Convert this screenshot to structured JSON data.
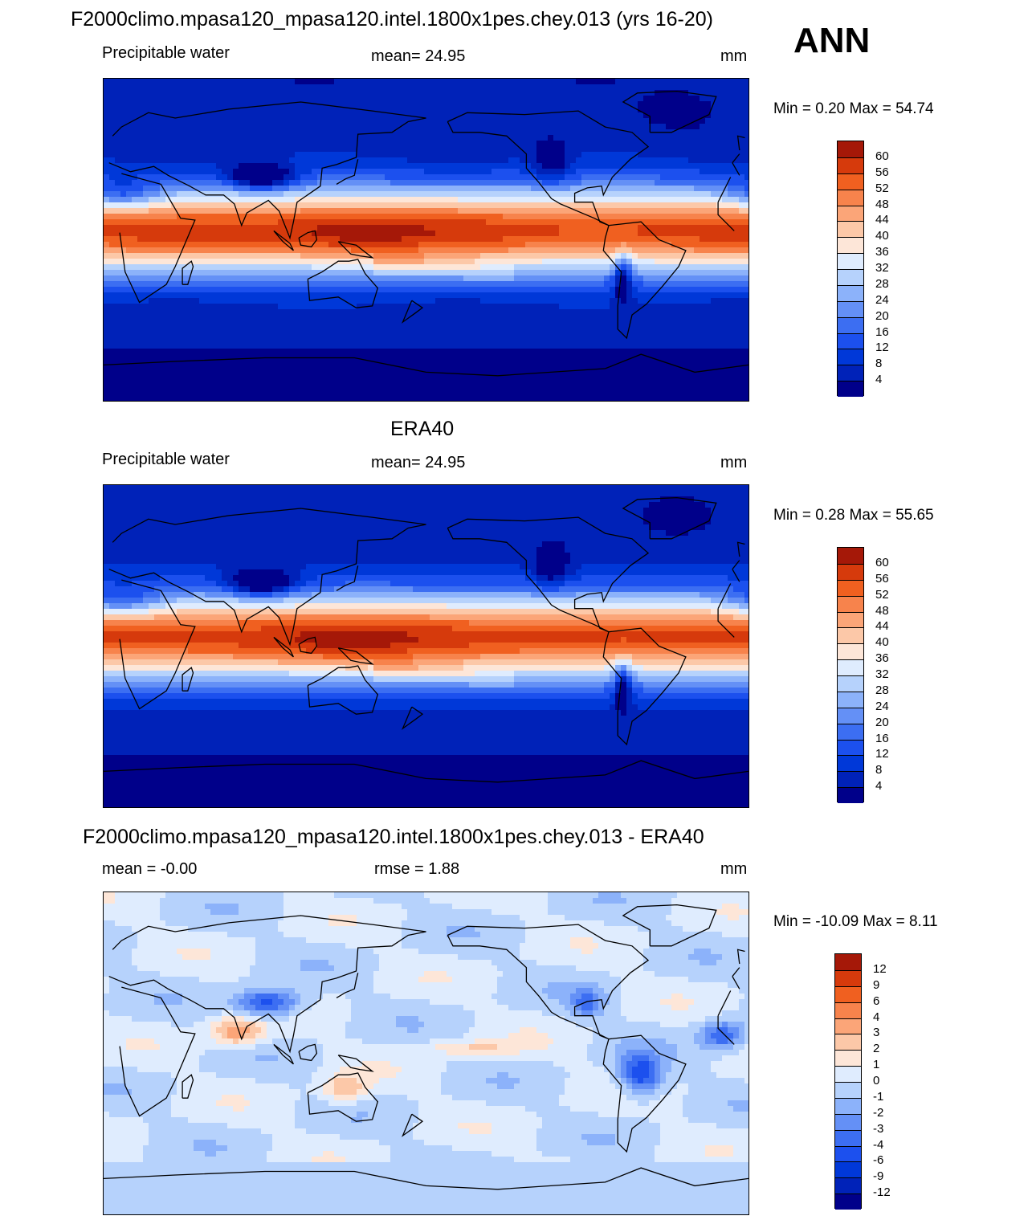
{
  "header": {
    "title": "F2000climo.mpasa120_mpasa120.intel.1800x1pes.chey.013 (yrs 16-20)",
    "season": "ANN"
  },
  "panels": [
    {
      "title": "",
      "left": "Precipitable water",
      "center": "mean=  24.95",
      "units": "mm",
      "minmax": "Min =    0.20 Max =   54.74",
      "colorbar_labels": [
        "60",
        "56",
        "52",
        "48",
        "44",
        "40",
        "36",
        "32",
        "28",
        "24",
        "20",
        "16",
        "12",
        "8",
        "4"
      ]
    },
    {
      "title": "ERA40",
      "left": "Precipitable water",
      "center": "mean=  24.95",
      "units": "mm",
      "minmax": "Min =    0.28 Max =   55.65",
      "colorbar_labels": [
        "60",
        "56",
        "52",
        "48",
        "44",
        "40",
        "36",
        "32",
        "28",
        "24",
        "20",
        "16",
        "12",
        "8",
        "4"
      ]
    },
    {
      "title": "F2000climo.mpasa120_mpasa120.intel.1800x1pes.chey.013 - ERA40",
      "left": "mean =  -0.00",
      "center": "rmse =   1.88",
      "units": "mm",
      "minmax": "Min = -10.09 Max =    8.11",
      "colorbar_labels": [
        "12",
        "9",
        "6",
        "4",
        "3",
        "2",
        "1",
        "0",
        "-1",
        "-2",
        "-3",
        "-4",
        "-6",
        "-9",
        "-12"
      ]
    }
  ],
  "chart_data": [
    {
      "type": "heatmap",
      "title": "F2000climo.mpasa120_mpasa120.intel.1800x1pes.chey.013 (yrs 16-20)",
      "variable": "Precipitable water",
      "units": "mm",
      "mean": 24.95,
      "min": 0.2,
      "max": 54.74,
      "contour_levels": [
        4,
        8,
        12,
        16,
        20,
        24,
        28,
        32,
        36,
        40,
        44,
        48,
        52,
        56,
        60
      ],
      "colors": [
        "#00008a",
        "#0022b8",
        "#0038d8",
        "#1c50ee",
        "#3c6ef2",
        "#6490f6",
        "#8cb2fa",
        "#b6d2fc",
        "#dfecfe",
        "#fde6d8",
        "#fcc8a8",
        "#fba578",
        "#f7834c",
        "#f06020",
        "#d63a0c",
        "#a51808"
      ]
    },
    {
      "type": "heatmap",
      "title": "ERA40",
      "variable": "Precipitable water",
      "units": "mm",
      "mean": 24.95,
      "min": 0.28,
      "max": 55.65,
      "contour_levels": [
        4,
        8,
        12,
        16,
        20,
        24,
        28,
        32,
        36,
        40,
        44,
        48,
        52,
        56,
        60
      ],
      "colors": [
        "#00008a",
        "#0022b8",
        "#0038d8",
        "#1c50ee",
        "#3c6ef2",
        "#6490f6",
        "#8cb2fa",
        "#b6d2fc",
        "#dfecfe",
        "#fde6d8",
        "#fcc8a8",
        "#fba578",
        "#f7834c",
        "#f06020",
        "#d63a0c",
        "#a51808"
      ]
    },
    {
      "type": "heatmap",
      "title": "F2000climo.mpasa120_mpasa120.intel.1800x1pes.chey.013 - ERA40",
      "units": "mm",
      "mean": -0.0,
      "rmse": 1.88,
      "min": -10.09,
      "max": 8.11,
      "contour_levels": [
        -12,
        -9,
        -6,
        -4,
        -3,
        -2,
        -1,
        0,
        1,
        2,
        3,
        4,
        6,
        9,
        12
      ],
      "colors": [
        "#00008a",
        "#0022b8",
        "#0038d8",
        "#1c50ee",
        "#3c6ef2",
        "#6490f6",
        "#8cb2fa",
        "#b6d2fc",
        "#dfecfe",
        "#fde6d8",
        "#fcc8a8",
        "#fba578",
        "#f7834c",
        "#f06020",
        "#d63a0c",
        "#a51808"
      ]
    }
  ]
}
